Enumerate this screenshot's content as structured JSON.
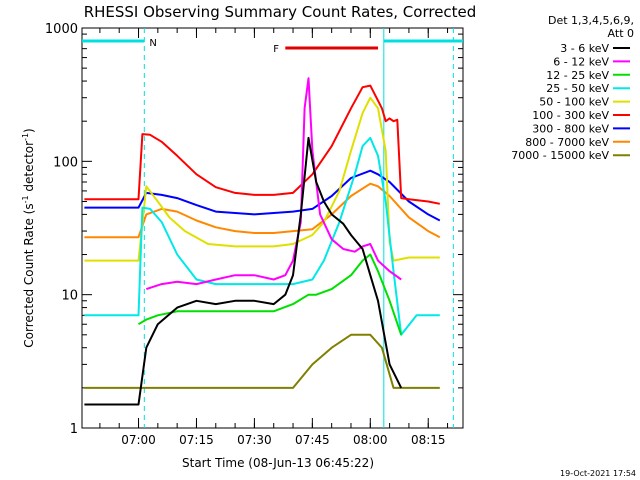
{
  "chart_data": {
    "type": "line",
    "title": "RHESSI Observing Summary Count Rates, Corrected",
    "xlabel": "Start Time (08-Jun-13 06:45:22)",
    "ylabel": "Corrected Count Rate (s",
    "ylabel_sup1": "-1",
    "ylabel_mid": " detector",
    "ylabel_sup2": "-1",
    "ylabel_end": ")",
    "y_scale": "log",
    "ylim": [
      1,
      1000
    ],
    "xlim": [
      "06:45:22",
      "08:24:00"
    ],
    "x_ticks": [
      "07:00",
      "07:15",
      "07:30",
      "07:45",
      "08:00",
      "08:15"
    ],
    "y_ticks": [
      "1",
      "10",
      "100",
      "1000"
    ],
    "legend_header": [
      "Det 1,3,4,5,6,9,",
      "Att 0"
    ],
    "legend_position": "right",
    "timestamp": "19-Oct-2021 17:54",
    "annotations": [
      {
        "label": "N",
        "color": "#00e0e0"
      },
      {
        "label": "F",
        "color": "#e00000"
      }
    ],
    "series": [
      {
        "name": "3 - 6 keV",
        "color": "#000000",
        "x": [
          "06:46",
          "07:00",
          "07:02",
          "07:05",
          "07:10",
          "07:15",
          "07:20",
          "07:25",
          "07:30",
          "07:35",
          "07:38",
          "07:40",
          "07:42",
          "07:44",
          "07:46",
          "07:48",
          "07:50",
          "07:53",
          "07:55",
          "07:58",
          "08:00",
          "08:02",
          "08:05",
          "08:08"
        ],
        "y": [
          1.5,
          1.5,
          4,
          6,
          8,
          9,
          8.5,
          9,
          9,
          8.5,
          10,
          14,
          40,
          150,
          70,
          50,
          40,
          34,
          28,
          22,
          14,
          9,
          3,
          2
        ]
      },
      {
        "name": "6 - 12 keV",
        "color": "#ff00ff",
        "x": [
          "06:46",
          "07:00",
          "07:02",
          "07:06",
          "07:10",
          "07:15",
          "07:20",
          "07:25",
          "07:30",
          "07:35",
          "07:38",
          "07:40",
          "07:42",
          "07:43",
          "07:44",
          "07:45",
          "07:47",
          "07:50",
          "07:53",
          "07:56",
          "07:58",
          "08:00",
          "08:02",
          "08:05",
          "08:08"
        ],
        "y": [
          null,
          null,
          11,
          12,
          12.5,
          12,
          13,
          14,
          14,
          13,
          14,
          18,
          35,
          250,
          420,
          120,
          40,
          26,
          22,
          21,
          23,
          24,
          18,
          15,
          13
        ]
      },
      {
        "name": "12 - 25 keV",
        "color": "#00e000",
        "x": [
          "07:00",
          "07:02",
          "07:05",
          "07:10",
          "07:15",
          "07:20",
          "07:25",
          "07:30",
          "07:35",
          "07:40",
          "07:44",
          "07:46",
          "07:50",
          "07:55",
          "07:58",
          "08:00",
          "08:02",
          "08:05",
          "08:08"
        ],
        "y": [
          6,
          6.5,
          7,
          7.5,
          7.5,
          7.5,
          7.5,
          7.5,
          7.5,
          8.5,
          10,
          10,
          11,
          14,
          18,
          20,
          15,
          9,
          5
        ]
      },
      {
        "name": "25 - 50 keV",
        "color": "#00e8e8",
        "x": [
          "06:46",
          "07:00",
          "07:01",
          "07:03",
          "07:06",
          "07:10",
          "07:15",
          "07:20",
          "07:25",
          "07:30",
          "07:35",
          "07:40",
          "07:45",
          "07:48",
          "07:52",
          "07:56",
          "07:58",
          "08:00",
          "08:02",
          "08:04",
          "08:06",
          "08:08",
          "08:12",
          "08:15",
          "08:18"
        ],
        "y": [
          7,
          7,
          45,
          44,
          35,
          20,
          13,
          12,
          12,
          12,
          12,
          12,
          13,
          18,
          35,
          80,
          130,
          150,
          110,
          50,
          15,
          5,
          7,
          7,
          7
        ]
      },
      {
        "name": "50 - 100 keV",
        "color": "#e0e000",
        "x": [
          "06:46",
          "07:00",
          "07:02",
          "07:05",
          "07:08",
          "07:12",
          "07:18",
          "07:25",
          "07:30",
          "07:35",
          "07:40",
          "07:45",
          "07:48",
          "07:52",
          "07:55",
          "07:58",
          "08:00",
          "08:02",
          "08:04",
          "08:05",
          "08:06",
          "08:10",
          "08:15",
          "08:18"
        ],
        "y": [
          18,
          18,
          65,
          50,
          38,
          30,
          24,
          23,
          23,
          23,
          24,
          28,
          35,
          60,
          120,
          230,
          300,
          250,
          120,
          25,
          18,
          19,
          19,
          19
        ]
      },
      {
        "name": "100 - 300 keV",
        "color": "#ff0000",
        "x": [
          "06:46",
          "07:00",
          "07:01",
          "07:03",
          "07:06",
          "07:10",
          "07:15",
          "07:20",
          "07:25",
          "07:30",
          "07:35",
          "07:40",
          "07:45",
          "07:50",
          "07:55",
          "07:58",
          "08:00",
          "08:03",
          "08:04",
          "08:05",
          "08:06",
          "08:07",
          "08:08",
          "08:10",
          "08:15",
          "08:18"
        ],
        "y": [
          52,
          52,
          160,
          158,
          140,
          110,
          80,
          64,
          58,
          56,
          56,
          58,
          80,
          130,
          250,
          360,
          370,
          250,
          200,
          210,
          200,
          205,
          53,
          52,
          50,
          48
        ]
      },
      {
        "name": "300 - 800 keV",
        "color": "#0000ff",
        "x": [
          "06:46",
          "07:00",
          "07:02",
          "07:06",
          "07:10",
          "07:15",
          "07:20",
          "07:25",
          "07:30",
          "07:35",
          "07:40",
          "07:45",
          "07:50",
          "07:55",
          "08:00",
          "08:02",
          "08:05",
          "08:10",
          "08:15",
          "08:18"
        ],
        "y": [
          45,
          45,
          58,
          56,
          53,
          47,
          42,
          41,
          40,
          41,
          42,
          44,
          55,
          75,
          85,
          80,
          70,
          50,
          40,
          36
        ]
      },
      {
        "name": "800 - 7000 keV",
        "color": "#ff8800",
        "x": [
          "06:46",
          "07:00",
          "07:02",
          "07:06",
          "07:10",
          "07:15",
          "07:20",
          "07:25",
          "07:30",
          "07:35",
          "07:40",
          "07:45",
          "07:50",
          "07:55",
          "08:00",
          "08:02",
          "08:05",
          "08:10",
          "08:15",
          "08:18"
        ],
        "y": [
          27,
          27,
          40,
          44,
          42,
          36,
          32,
          30,
          29,
          29,
          30,
          31,
          40,
          55,
          68,
          65,
          55,
          38,
          30,
          27
        ]
      },
      {
        "name": "7000 - 15000 keV",
        "color": "#808000",
        "x": [
          "06:46",
          "07:00",
          "07:05",
          "07:10",
          "07:20",
          "07:30",
          "07:40",
          "07:45",
          "07:50",
          "07:55",
          "08:00",
          "08:03",
          "08:06",
          "08:10",
          "08:15",
          "08:18"
        ],
        "y": [
          2,
          2,
          2,
          2,
          2,
          2,
          2,
          3,
          4,
          5,
          5,
          4,
          2,
          2,
          2,
          2
        ]
      }
    ]
  }
}
